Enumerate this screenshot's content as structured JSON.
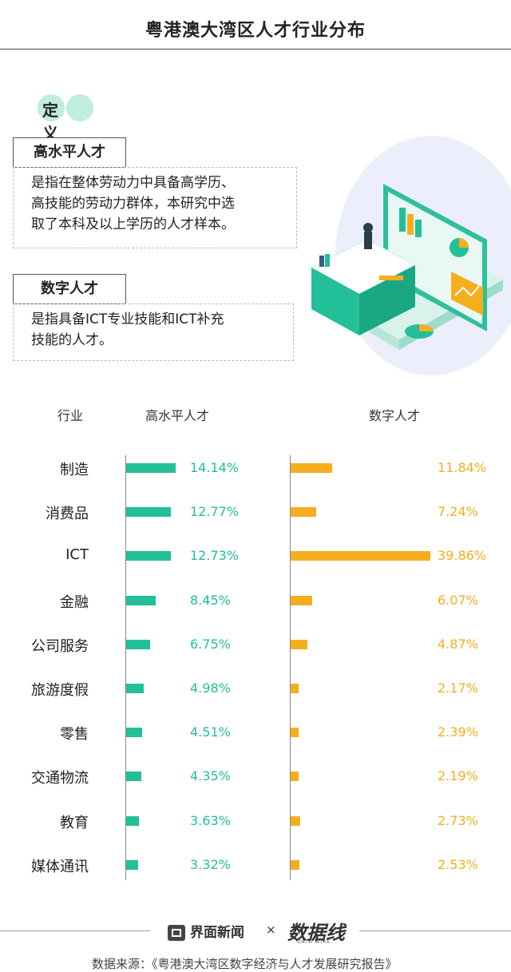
{
  "title": "粤港澳大湾区人才行业分布",
  "definition": {
    "badge": "定义",
    "items": [
      {
        "term": "高水平人才",
        "lines": [
          "是指在整体劳动力中具备高学历、",
          "高技能的劳动力群体，本研究中选",
          "取了本科及以上学历的人才样本。"
        ]
      },
      {
        "term": "数字人才",
        "lines": [
          "是指具备ICT专业技能和ICT补充",
          "技能的人才。"
        ]
      }
    ]
  },
  "chart_data": {
    "type": "bar",
    "orientation": "horizontal",
    "category_header": "行业",
    "categories": [
      "制造",
      "消费品",
      "ICT",
      "金融",
      "公司服务",
      "旅游度假",
      "零售",
      "交通物流",
      "教育",
      "媒体通讯"
    ],
    "series": [
      {
        "name": "高水平人才",
        "color": "#23bf98",
        "values": [
          14.14,
          12.77,
          12.73,
          8.45,
          6.75,
          4.98,
          4.51,
          4.35,
          3.63,
          3.32
        ],
        "labels": [
          "14.14%",
          "12.77%",
          "12.73%",
          "8.45%",
          "6.75%",
          "4.98%",
          "4.51%",
          "4.35%",
          "3.63%",
          "3.32%"
        ]
      },
      {
        "name": "数字人才",
        "color": "#f5ae1e",
        "values": [
          11.84,
          7.24,
          39.86,
          6.07,
          4.87,
          2.17,
          2.39,
          2.19,
          2.73,
          2.53
        ],
        "labels": [
          "11.84%",
          "7.24%",
          "39.86%",
          "6.07%",
          "4.87%",
          "2.17%",
          "2.39%",
          "2.19%",
          "2.73%",
          "2.53%"
        ]
      }
    ]
  },
  "footer": {
    "logo_text": "界面新闻",
    "separator": "×",
    "brand": "数据线",
    "brand_sub": "DATA WIRE",
    "source": "数据来源：《粤港澳大湾区数字经济与人才发展研究报告》"
  }
}
